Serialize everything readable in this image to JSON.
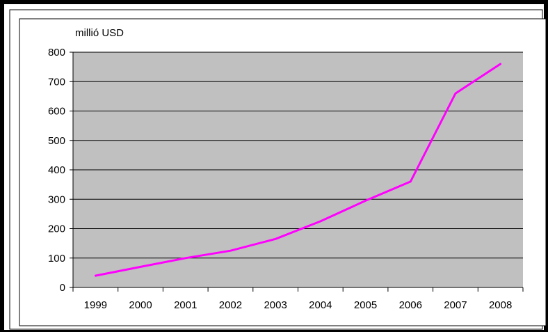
{
  "chart_data": {
    "type": "line",
    "title": "",
    "ylabel": "millió USD",
    "xlabel": "",
    "categories": [
      "1999",
      "2000",
      "2001",
      "2002",
      "2003",
      "2004",
      "2005",
      "2006",
      "2007",
      "2008"
    ],
    "series": [
      {
        "values": [
          40,
          70,
          100,
          125,
          165,
          225,
          295,
          360,
          660,
          760
        ]
      }
    ],
    "ylim": [
      0,
      800
    ],
    "yticks": [
      0,
      100,
      200,
      300,
      400,
      500,
      600,
      700,
      800
    ],
    "grid": true,
    "legend": "none",
    "colors": {
      "line": "#ff00ff",
      "plot_background": "#c0c0c0",
      "gridline": "#000000",
      "border": "#000000"
    }
  }
}
